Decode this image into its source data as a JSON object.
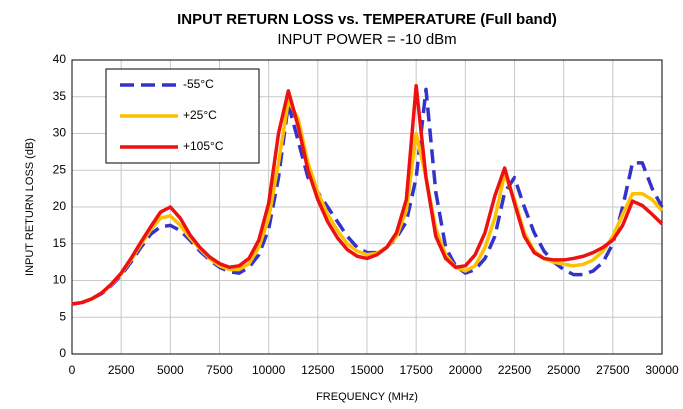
{
  "chart_data": {
    "type": "line",
    "title": "INPUT RETURN LOSS vs. TEMPERATURE (Full band)",
    "subtitle": "INPUT POWER = -10 dBm",
    "x_label": "FREQUENCY  (MHz)",
    "y_label": "INPUT RETURN LOSS (dB)",
    "x": [
      0,
      500,
      1000,
      1500,
      2000,
      2500,
      3000,
      3500,
      4000,
      4500,
      5000,
      5500,
      6000,
      6500,
      7000,
      7500,
      8000,
      8500,
      9000,
      9500,
      10000,
      10500,
      11000,
      11500,
      12000,
      12500,
      13000,
      13500,
      14000,
      14500,
      15000,
      15500,
      16000,
      16500,
      17000,
      17500,
      18000,
      18500,
      19000,
      19500,
      20000,
      20500,
      21000,
      21500,
      22000,
      22500,
      23000,
      23500,
      24000,
      24500,
      25000,
      25500,
      26000,
      26500,
      27000,
      27500,
      28000,
      28500,
      29000,
      29500,
      30000
    ],
    "series": [
      {
        "name": "-55°C",
        "color": "#3333cc",
        "dash": true,
        "values": [
          6.8,
          7,
          7.5,
          8.2,
          9.3,
          10.7,
          12.5,
          14.5,
          16.3,
          17.3,
          17.5,
          16.8,
          15.5,
          14,
          12.8,
          11.8,
          11.2,
          11,
          11.8,
          13.5,
          17,
          24,
          34,
          29,
          24,
          22,
          20,
          18,
          16,
          14.5,
          13.8,
          13.8,
          14.5,
          15.8,
          18,
          24,
          36,
          22,
          14.5,
          12,
          11,
          11.5,
          13,
          16,
          22,
          24,
          20,
          16.5,
          14,
          12.5,
          11.5,
          10.8,
          10.8,
          11.3,
          12.5,
          15,
          20,
          26,
          26,
          22.5,
          20
        ]
      },
      {
        "name": "+25°C",
        "color": "#ffc000",
        "dash": false,
        "values": [
          6.8,
          7,
          7.5,
          8.3,
          9.4,
          10.9,
          12.8,
          14.9,
          16.9,
          18.5,
          18.8,
          17.5,
          15.8,
          14.3,
          13,
          12,
          11.5,
          11.5,
          12.3,
          14.5,
          18.5,
          26,
          34.5,
          32,
          26,
          22,
          19,
          16.8,
          15,
          14,
          13.5,
          13.7,
          14.5,
          16,
          19.5,
          30,
          24,
          17,
          13.5,
          11.8,
          11.3,
          12,
          14.5,
          18.5,
          24.5,
          21,
          16.5,
          14,
          13,
          12.5,
          12.2,
          12,
          12.2,
          12.8,
          14,
          16,
          19,
          21.8,
          21.8,
          21,
          19.5
        ]
      },
      {
        "name": "+105°C",
        "color": "#ee1111",
        "dash": false,
        "values": [
          6.8,
          7,
          7.5,
          8.3,
          9.5,
          11,
          13,
          15.2,
          17.3,
          19.3,
          20,
          18.5,
          16.2,
          14.5,
          13.2,
          12.3,
          11.8,
          12,
          13,
          15.5,
          20.5,
          30,
          35.8,
          31,
          25,
          21,
          18,
          15.8,
          14.2,
          13.3,
          13,
          13.5,
          14.5,
          16.5,
          21,
          36.5,
          24,
          16,
          13,
          11.8,
          12,
          13.5,
          16.5,
          21.5,
          25.3,
          20.5,
          16,
          13.8,
          13,
          12.8,
          12.8,
          13,
          13.3,
          13.8,
          14.5,
          15.5,
          17.5,
          20.8,
          20.2,
          19,
          17.7
        ]
      }
    ],
    "xlim": [
      0,
      30000
    ],
    "xticks": [
      0,
      2500,
      5000,
      7500,
      10000,
      12500,
      15000,
      17500,
      20000,
      22500,
      25000,
      27500,
      30000
    ],
    "ylim": [
      0,
      40
    ],
    "yticks": [
      0,
      5,
      10,
      15,
      20,
      25,
      30,
      35,
      40
    ],
    "grid": true,
    "legend": "top-left"
  }
}
